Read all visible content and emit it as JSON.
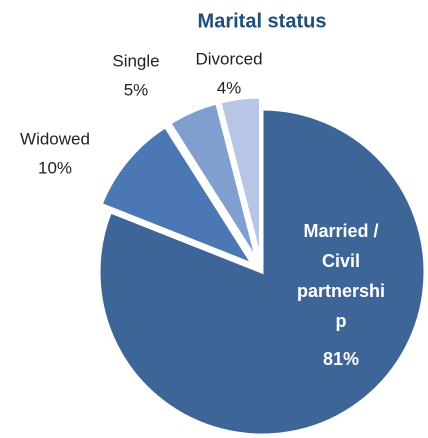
{
  "chart_data": {
    "type": "pie",
    "title": "Marital status",
    "categories": [
      "Married / Civil partnership",
      "Widowed",
      "Single",
      "Divorced"
    ],
    "values": [
      81,
      10,
      5,
      4
    ],
    "value_labels": [
      "81%",
      "10%",
      "5%",
      "4%"
    ],
    "colors": [
      "#3e6597",
      "#4b78b4",
      "#809fcf",
      "#b6c6e4"
    ]
  }
}
